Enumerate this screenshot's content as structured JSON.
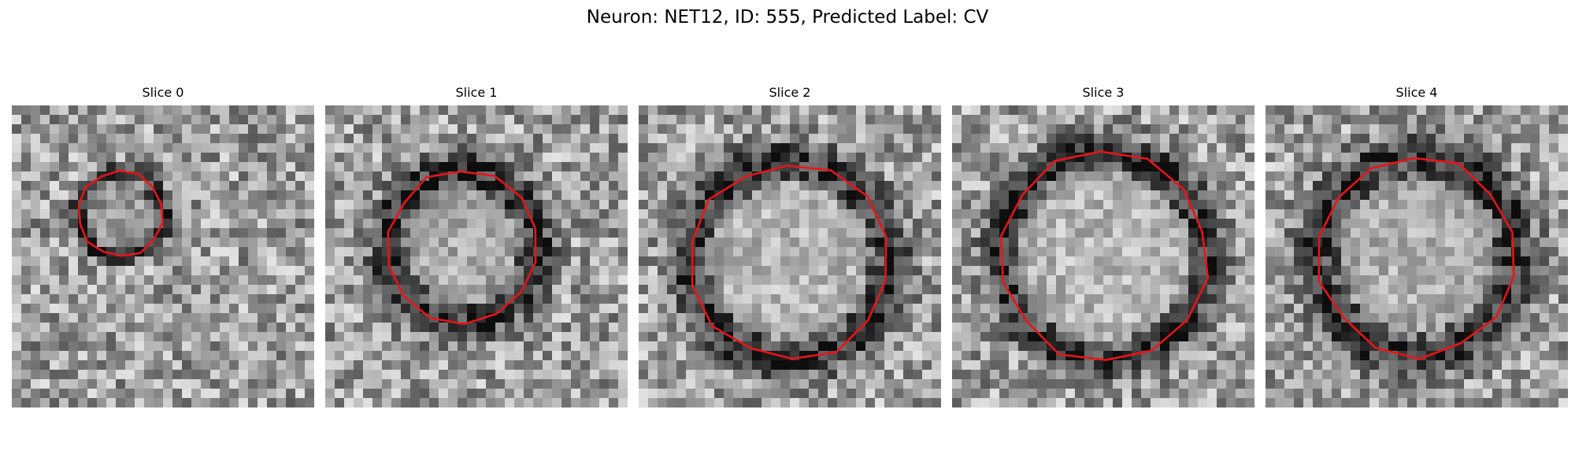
{
  "figure": {
    "title": "Neuron: NET12, ID: 555, Predicted Label: CV"
  },
  "panels": [
    {
      "title": "Slice 0",
      "contour_color": "#e8141a"
    },
    {
      "title": "Slice 1",
      "contour_color": "#e8141a"
    },
    {
      "title": "Slice 2",
      "contour_color": "#e8141a"
    },
    {
      "title": "Slice 3",
      "contour_color": "#e8141a"
    },
    {
      "title": "Slice 4",
      "contour_color": "#e8141a"
    }
  ],
  "colors": {
    "contour": "#e8141a",
    "colormap": "grayscale"
  }
}
